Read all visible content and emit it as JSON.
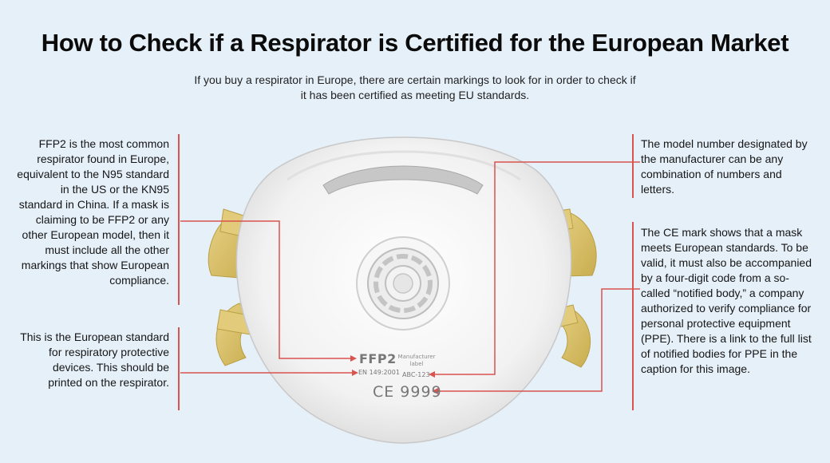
{
  "header": {
    "title": "How to Check if a Respirator is Certified for the European Market",
    "subtitle": "If you buy a respirator in Europe, there are certain markings to look for in order to check if it has been certified as meeting EU standards."
  },
  "notes": {
    "ffp2": "FFP2 is the most common respirator found in Europe, equivalent to the N95 standard in the US or the KN95 standard in China. If a mask is claiming to be FFP2 or any other European model, then it must include all the other markings that show European compliance.",
    "standard": "This is the European standard for respiratory protective devices. This should be printed on the respirator.",
    "model": "The model number designated by the manufacturer can be any combination of numbers and letters.",
    "ce": "The CE mark shows that a mask meets European standards. To be valid, it must also be accompanied by a four-digit code from a so-called “notified body,” a company authorized to verify compliance for personal protective equipment (PPE). There is a link to the full list of notified bodies for PPE in the caption for this image."
  },
  "mask_labels": {
    "ffp2": "FFP2",
    "manufacturer": "Manufacturer label",
    "standard": "EN 149:2001",
    "model": "ABC-123",
    "ce_mark": "CE 9999"
  },
  "colors": {
    "background": "#e6f0f9",
    "callout_line": "#d9534f",
    "mask_body": "#f4f4f4",
    "straps": "#d8c06a"
  }
}
